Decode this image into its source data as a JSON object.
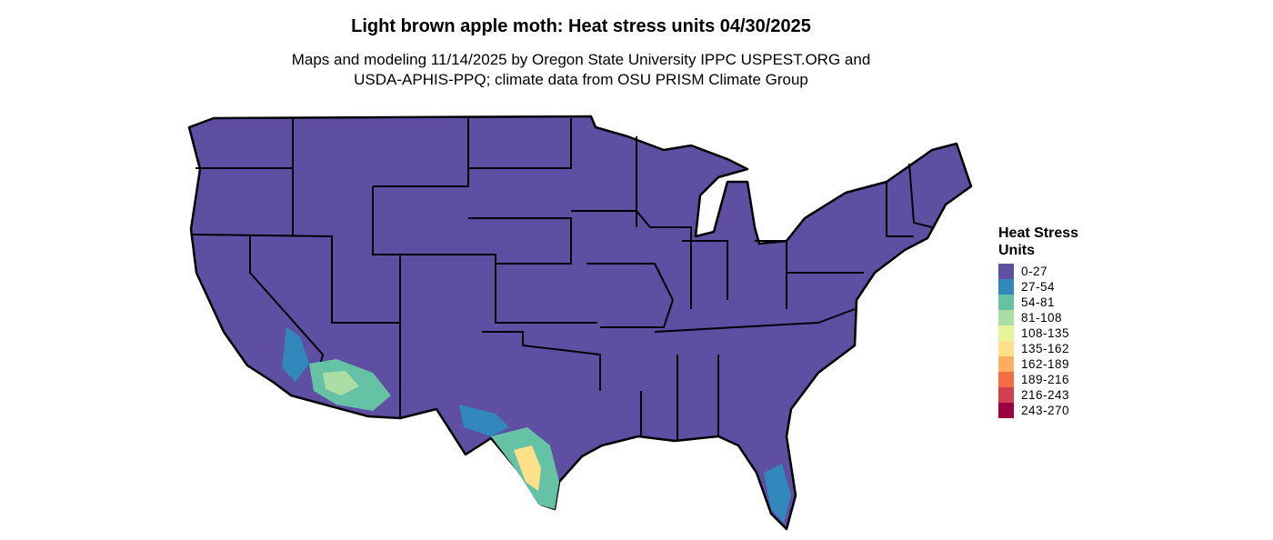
{
  "title": "Light brown apple moth: Heat stress units 04/30/2025",
  "subtitle_line1": "Maps and modeling 11/14/2025 by Oregon State University IPPC USPEST.ORG and",
  "subtitle_line2": "USDA-APHIS-PPQ; climate data from OSU PRISM Climate Group",
  "map": {
    "region": "Contiguous United States",
    "base_color": "#5E4FA2",
    "border_color": "#000000"
  },
  "legend": {
    "title": "Heat Stress Units",
    "items": [
      {
        "label": "0-27",
        "color": "#5E4FA2"
      },
      {
        "label": "27-54",
        "color": "#3288BD"
      },
      {
        "label": "54-81",
        "color": "#66C2A5"
      },
      {
        "label": "81-108",
        "color": "#ABDDA4"
      },
      {
        "label": "108-135",
        "color": "#E6F598"
      },
      {
        "label": "135-162",
        "color": "#FEE08B"
      },
      {
        "label": "162-189",
        "color": "#FDAE61"
      },
      {
        "label": "189-216",
        "color": "#F46D43"
      },
      {
        "label": "216-243",
        "color": "#D53E4F"
      },
      {
        "label": "243-270",
        "color": "#9E0142"
      }
    ]
  }
}
